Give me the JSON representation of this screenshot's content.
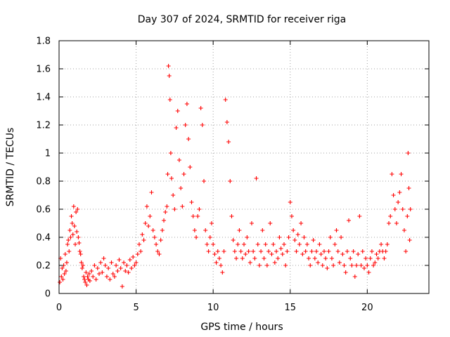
{
  "chart_data": {
    "type": "scatter",
    "title": "Day 307 of 2024, SRMTID for receiver riga",
    "xlabel": "GPS time / hours",
    "ylabel": "SRMTID / TECUs",
    "xlim": [
      0,
      24
    ],
    "ylim": [
      0,
      1.8
    ],
    "xticks": [
      0,
      5,
      10,
      15,
      20
    ],
    "xtick_labels": [
      "0",
      "5",
      "10",
      "15",
      "20"
    ],
    "yticks": [
      0,
      0.2,
      0.4,
      0.6,
      0.8,
      1.0,
      1.2,
      1.4,
      1.6,
      1.8
    ],
    "ytick_labels": [
      "0",
      "0.2",
      "0.4",
      "0.6",
      "0.8",
      "1",
      "1.2",
      "1.4",
      "1.6",
      "1.8"
    ],
    "grid": true,
    "marker": "+",
    "color": "#ff0000",
    "series": [
      {
        "name": "riga",
        "points": [
          [
            0.05,
            0.08
          ],
          [
            0.1,
            0.25
          ],
          [
            0.15,
            0.12
          ],
          [
            0.2,
            0.18
          ],
          [
            0.25,
            0.1
          ],
          [
            0.3,
            0.2
          ],
          [
            0.35,
            0.14
          ],
          [
            0.4,
            0.28
          ],
          [
            0.45,
            0.16
          ],
          [
            0.5,
            0.22
          ],
          [
            0.55,
            0.35
          ],
          [
            0.6,
            0.38
          ],
          [
            0.65,
            0.3
          ],
          [
            0.7,
            0.45
          ],
          [
            0.75,
            0.4
          ],
          [
            0.8,
            0.55
          ],
          [
            0.85,
            0.5
          ],
          [
            0.9,
            0.42
          ],
          [
            0.95,
            0.62
          ],
          [
            1.0,
            0.48
          ],
          [
            1.05,
            0.35
          ],
          [
            1.1,
            0.58
          ],
          [
            1.15,
            0.44
          ],
          [
            1.2,
            0.6
          ],
          [
            1.25,
            0.4
          ],
          [
            1.3,
            0.36
          ],
          [
            1.35,
            0.3
          ],
          [
            1.4,
            0.28
          ],
          [
            1.45,
            0.22
          ],
          [
            1.5,
            0.18
          ],
          [
            1.55,
            0.2
          ],
          [
            1.6,
            0.12
          ],
          [
            1.65,
            0.1
          ],
          [
            1.7,
            0.08
          ],
          [
            1.75,
            0.15
          ],
          [
            1.8,
            0.06
          ],
          [
            1.85,
            0.12
          ],
          [
            1.9,
            0.1
          ],
          [
            1.95,
            0.14
          ],
          [
            2.0,
            0.09
          ],
          [
            2.1,
            0.16
          ],
          [
            2.2,
            0.12
          ],
          [
            2.3,
            0.2
          ],
          [
            2.4,
            0.1
          ],
          [
            2.5,
            0.18
          ],
          [
            2.6,
            0.14
          ],
          [
            2.7,
            0.22
          ],
          [
            2.8,
            0.15
          ],
          [
            2.9,
            0.25
          ],
          [
            3.0,
            0.2
          ],
          [
            3.1,
            0.12
          ],
          [
            3.2,
            0.18
          ],
          [
            3.3,
            0.1
          ],
          [
            3.4,
            0.22
          ],
          [
            3.5,
            0.14
          ],
          [
            3.6,
            0.12
          ],
          [
            3.7,
            0.2
          ],
          [
            3.8,
            0.16
          ],
          [
            3.9,
            0.24
          ],
          [
            4.0,
            0.18
          ],
          [
            4.1,
            0.05
          ],
          [
            4.2,
            0.22
          ],
          [
            4.3,
            0.16
          ],
          [
            4.4,
            0.2
          ],
          [
            4.5,
            0.15
          ],
          [
            4.6,
            0.24
          ],
          [
            4.7,
            0.18
          ],
          [
            4.8,
            0.26
          ],
          [
            4.9,
            0.2
          ],
          [
            5.0,
            0.22
          ],
          [
            5.1,
            0.28
          ],
          [
            5.2,
            0.35
          ],
          [
            5.3,
            0.3
          ],
          [
            5.4,
            0.42
          ],
          [
            5.5,
            0.38
          ],
          [
            5.6,
            0.5
          ],
          [
            5.7,
            0.62
          ],
          [
            5.8,
            0.48
          ],
          [
            5.9,
            0.55
          ],
          [
            6.0,
            0.72
          ],
          [
            6.1,
            0.45
          ],
          [
            6.2,
            0.4
          ],
          [
            6.3,
            0.35
          ],
          [
            6.4,
            0.3
          ],
          [
            6.5,
            0.28
          ],
          [
            6.6,
            0.38
          ],
          [
            6.7,
            0.45
          ],
          [
            6.8,
            0.52
          ],
          [
            6.9,
            0.58
          ],
          [
            7.0,
            0.62
          ],
          [
            7.05,
            0.85
          ],
          [
            7.1,
            1.62
          ],
          [
            7.15,
            1.55
          ],
          [
            7.2,
            1.38
          ],
          [
            7.25,
            1.0
          ],
          [
            7.3,
            0.82
          ],
          [
            7.4,
            0.7
          ],
          [
            7.5,
            0.6
          ],
          [
            7.6,
            1.18
          ],
          [
            7.7,
            1.3
          ],
          [
            7.8,
            0.95
          ],
          [
            7.9,
            0.75
          ],
          [
            8.0,
            0.62
          ],
          [
            8.1,
            0.85
          ],
          [
            8.2,
            1.2
          ],
          [
            8.3,
            1.35
          ],
          [
            8.4,
            1.1
          ],
          [
            8.5,
            0.9
          ],
          [
            8.6,
            0.65
          ],
          [
            8.7,
            0.55
          ],
          [
            8.8,
            0.45
          ],
          [
            8.9,
            0.4
          ],
          [
            9.0,
            0.55
          ],
          [
            9.1,
            0.6
          ],
          [
            9.2,
            1.32
          ],
          [
            9.3,
            1.2
          ],
          [
            9.4,
            0.8
          ],
          [
            9.5,
            0.45
          ],
          [
            9.6,
            0.35
          ],
          [
            9.7,
            0.3
          ],
          [
            9.8,
            0.4
          ],
          [
            9.9,
            0.5
          ],
          [
            10.0,
            0.35
          ],
          [
            10.1,
            0.28
          ],
          [
            10.2,
            0.22
          ],
          [
            10.3,
            0.3
          ],
          [
            10.4,
            0.25
          ],
          [
            10.5,
            0.2
          ],
          [
            10.6,
            0.15
          ],
          [
            10.7,
            0.3
          ],
          [
            10.8,
            1.38
          ],
          [
            10.9,
            1.22
          ],
          [
            11.0,
            1.08
          ],
          [
            11.1,
            0.8
          ],
          [
            11.2,
            0.55
          ],
          [
            11.3,
            0.38
          ],
          [
            11.4,
            0.3
          ],
          [
            11.5,
            0.25
          ],
          [
            11.6,
            0.35
          ],
          [
            11.7,
            0.45
          ],
          [
            11.8,
            0.3
          ],
          [
            11.9,
            0.25
          ],
          [
            12.0,
            0.35
          ],
          [
            12.1,
            0.28
          ],
          [
            12.2,
            0.4
          ],
          [
            12.3,
            0.3
          ],
          [
            12.4,
            0.22
          ],
          [
            12.5,
            0.5
          ],
          [
            12.6,
            0.3
          ],
          [
            12.7,
            0.25
          ],
          [
            12.8,
            0.82
          ],
          [
            12.9,
            0.35
          ],
          [
            13.0,
            0.2
          ],
          [
            13.1,
            0.3
          ],
          [
            13.2,
            0.45
          ],
          [
            13.3,
            0.25
          ],
          [
            13.4,
            0.35
          ],
          [
            13.5,
            0.2
          ],
          [
            13.6,
            0.3
          ],
          [
            13.7,
            0.5
          ],
          [
            13.8,
            0.28
          ],
          [
            13.9,
            0.35
          ],
          [
            14.0,
            0.22
          ],
          [
            14.1,
            0.3
          ],
          [
            14.2,
            0.25
          ],
          [
            14.3,
            0.4
          ],
          [
            14.4,
            0.32
          ],
          [
            14.5,
            0.28
          ],
          [
            14.6,
            0.35
          ],
          [
            14.7,
            0.2
          ],
          [
            14.8,
            0.3
          ],
          [
            14.9,
            0.4
          ],
          [
            15.0,
            0.65
          ],
          [
            15.1,
            0.55
          ],
          [
            15.2,
            0.45
          ],
          [
            15.3,
            0.38
          ],
          [
            15.4,
            0.3
          ],
          [
            15.5,
            0.42
          ],
          [
            15.6,
            0.35
          ],
          [
            15.7,
            0.5
          ],
          [
            15.8,
            0.28
          ],
          [
            15.9,
            0.4
          ],
          [
            16.0,
            0.3
          ],
          [
            16.1,
            0.35
          ],
          [
            16.2,
            0.25
          ],
          [
            16.3,
            0.2
          ],
          [
            16.4,
            0.3
          ],
          [
            16.5,
            0.38
          ],
          [
            16.6,
            0.25
          ],
          [
            16.7,
            0.3
          ],
          [
            16.8,
            0.22
          ],
          [
            16.9,
            0.35
          ],
          [
            17.0,
            0.28
          ],
          [
            17.1,
            0.2
          ],
          [
            17.2,
            0.3
          ],
          [
            17.3,
            0.25
          ],
          [
            17.4,
            0.18
          ],
          [
            17.5,
            0.3
          ],
          [
            17.6,
            0.4
          ],
          [
            17.7,
            0.25
          ],
          [
            17.8,
            0.2
          ],
          [
            17.9,
            0.35
          ],
          [
            18.0,
            0.45
          ],
          [
            18.1,
            0.3
          ],
          [
            18.2,
            0.22
          ],
          [
            18.3,
            0.4
          ],
          [
            18.4,
            0.28
          ],
          [
            18.5,
            0.2
          ],
          [
            18.6,
            0.15
          ],
          [
            18.7,
            0.3
          ],
          [
            18.8,
            0.52
          ],
          [
            18.9,
            0.25
          ],
          [
            19.0,
            0.2
          ],
          [
            19.1,
            0.3
          ],
          [
            19.2,
            0.12
          ],
          [
            19.3,
            0.2
          ],
          [
            19.4,
            0.28
          ],
          [
            19.5,
            0.55
          ],
          [
            19.6,
            0.2
          ],
          [
            19.7,
            0.3
          ],
          [
            19.8,
            0.18
          ],
          [
            19.9,
            0.25
          ],
          [
            20.0,
            0.2
          ],
          [
            20.1,
            0.15
          ],
          [
            20.2,
            0.25
          ],
          [
            20.3,
            0.3
          ],
          [
            20.4,
            0.2
          ],
          [
            20.5,
            0.22
          ],
          [
            20.6,
            0.28
          ],
          [
            20.7,
            0.25
          ],
          [
            20.8,
            0.3
          ],
          [
            20.9,
            0.35
          ],
          [
            21.0,
            0.3
          ],
          [
            21.1,
            0.25
          ],
          [
            21.2,
            0.3
          ],
          [
            21.3,
            0.35
          ],
          [
            21.4,
            0.5
          ],
          [
            21.5,
            0.55
          ],
          [
            21.6,
            0.85
          ],
          [
            21.7,
            0.7
          ],
          [
            21.8,
            0.6
          ],
          [
            21.9,
            0.5
          ],
          [
            22.0,
            0.65
          ],
          [
            22.1,
            0.72
          ],
          [
            22.2,
            0.85
          ],
          [
            22.3,
            0.6
          ],
          [
            22.4,
            0.45
          ],
          [
            22.5,
            0.3
          ],
          [
            22.6,
            0.55
          ],
          [
            22.65,
            1.0
          ],
          [
            22.7,
            0.75
          ],
          [
            22.75,
            0.38
          ],
          [
            22.8,
            0.6
          ]
        ]
      }
    ]
  }
}
